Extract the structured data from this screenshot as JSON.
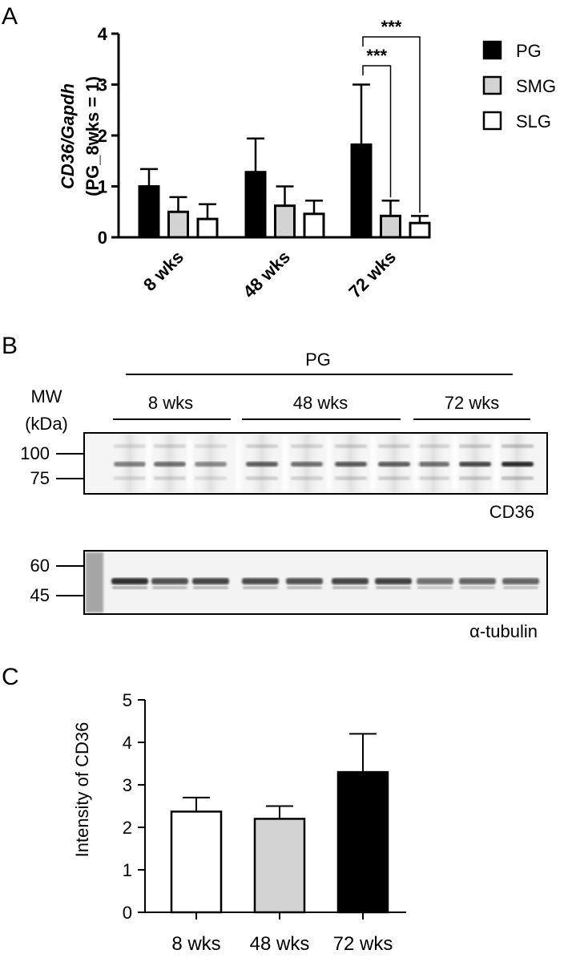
{
  "figure": {
    "panels": [
      {
        "label": "A"
      },
      {
        "label": "B"
      },
      {
        "label": "C"
      }
    ]
  },
  "chart_data": [
    {
      "type": "bar",
      "panel": "A",
      "ylabel_lines": [
        "CD36/Gapdh",
        "(PG_8wks = 1)"
      ],
      "categories": [
        "8 wks",
        "48 wks",
        "72 wks"
      ],
      "ylim": [
        0,
        4
      ],
      "yticks": [
        "0",
        "1",
        "2",
        "3",
        "4"
      ],
      "series": [
        {
          "name": "PG",
          "values": [
            1.0,
            1.28,
            1.82
          ],
          "errors": [
            0.34,
            0.66,
            1.18
          ],
          "fill": "#000000"
        },
        {
          "name": "SMG",
          "values": [
            0.5,
            0.62,
            0.42
          ],
          "errors": [
            0.29,
            0.38,
            0.3
          ],
          "fill": "#d3d3d3"
        },
        {
          "name": "SLG",
          "values": [
            0.36,
            0.46,
            0.28
          ],
          "errors": [
            0.29,
            0.26,
            0.14
          ],
          "fill": "#ffffff"
        }
      ],
      "significance": [
        {
          "label": "***",
          "from": "PG",
          "to": "SMG",
          "category": "72 wks"
        },
        {
          "label": "***",
          "from": "PG",
          "to": "SLG",
          "category": "72 wks"
        }
      ],
      "legend_position": "right"
    },
    {
      "type": "bar",
      "panel": "C",
      "ylabel": "Intensity of CD36",
      "categories": [
        "8 wks",
        "48 wks",
        "72 wks"
      ],
      "ylim": [
        0,
        5
      ],
      "yticks": [
        "0",
        "1",
        "2",
        "3",
        "4",
        "5"
      ],
      "values": [
        2.37,
        2.2,
        3.3
      ],
      "errors": [
        0.33,
        0.3,
        0.9
      ],
      "fills": [
        "#ffffff",
        "#d3d3d3",
        "#000000"
      ]
    }
  ],
  "western_blot": {
    "group_label": "PG",
    "lane_groups": [
      "8 wks",
      "48 wks",
      "72 wks"
    ],
    "mw_title_lines": [
      "MW",
      "(kDa)"
    ],
    "cd36_markers": [
      "100",
      "75"
    ],
    "tubulin_markers": [
      "60",
      "45"
    ],
    "cd36_label": "CD36",
    "tubulin_label": "α-tubulin"
  }
}
